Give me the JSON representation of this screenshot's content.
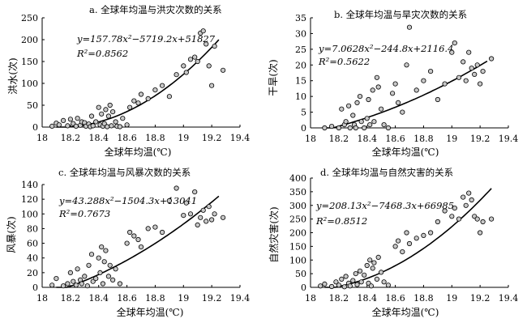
{
  "chart_data": [
    {
      "type": "scatter",
      "title": "a. 全球年均温与洪灾次数的关系",
      "xlabel": "全球年均温(℃)",
      "ylabel": "洪水(次)",
      "xlim": [
        18,
        19.4
      ],
      "ylim": [
        0,
        250
      ],
      "xticks": [
        "18",
        "18.2",
        "18.4",
        "18.6",
        "18.8",
        "19",
        "19.2",
        "19.4"
      ],
      "yticks": [
        "0",
        "50",
        "100",
        "150",
        "200",
        "250"
      ],
      "equation": "y=157.78x²−5719.2x+51827",
      "r2": "R²=0.8562",
      "fit": {
        "a": 157.78,
        "b": -5719.2,
        "c": 51827,
        "x_range": [
          18.1,
          19.25
        ]
      },
      "points": [
        [
          18.07,
          2
        ],
        [
          18.1,
          9
        ],
        [
          18.12,
          5
        ],
        [
          18.15,
          15
        ],
        [
          18.18,
          3
        ],
        [
          18.2,
          18
        ],
        [
          18.22,
          8
        ],
        [
          18.24,
          2
        ],
        [
          18.25,
          20
        ],
        [
          18.27,
          4
        ],
        [
          18.28,
          12
        ],
        [
          18.3,
          10
        ],
        [
          18.31,
          2
        ],
        [
          18.33,
          7
        ],
        [
          18.34,
          1
        ],
        [
          18.35,
          25
        ],
        [
          18.36,
          3
        ],
        [
          18.38,
          12
        ],
        [
          18.4,
          45
        ],
        [
          18.41,
          5
        ],
        [
          18.42,
          30
        ],
        [
          18.43,
          2
        ],
        [
          18.44,
          8
        ],
        [
          18.45,
          40
        ],
        [
          18.46,
          1
        ],
        [
          18.47,
          25
        ],
        [
          18.48,
          50
        ],
        [
          18.49,
          3
        ],
        [
          18.5,
          35
        ],
        [
          18.52,
          12
        ],
        [
          18.53,
          2
        ],
        [
          18.55,
          1
        ],
        [
          18.57,
          20
        ],
        [
          18.6,
          5
        ],
        [
          18.62,
          45
        ],
        [
          18.65,
          60
        ],
        [
          18.68,
          55
        ],
        [
          18.7,
          75
        ],
        [
          18.75,
          65
        ],
        [
          18.8,
          85
        ],
        [
          18.85,
          95
        ],
        [
          18.9,
          70
        ],
        [
          18.95,
          120
        ],
        [
          19,
          140
        ],
        [
          19.02,
          125
        ],
        [
          19.05,
          155
        ],
        [
          19.08,
          160
        ],
        [
          19.1,
          150
        ],
        [
          19.12,
          215
        ],
        [
          19.14,
          220
        ],
        [
          19.16,
          190
        ],
        [
          19.18,
          140
        ],
        [
          19.2,
          95
        ],
        [
          19.22,
          185
        ],
        [
          19.28,
          130
        ]
      ]
    },
    {
      "type": "scatter",
      "title": "b. 全球年均温与旱灾次数的关系",
      "xlabel": "全球年均温(℃)",
      "ylabel": "干旱(次)",
      "xlim": [
        18,
        19.4
      ],
      "ylim": [
        0,
        35
      ],
      "xticks": [
        "18",
        "18.2",
        "18.4",
        "18.6",
        "18.8",
        "19",
        "19.2",
        "19.4"
      ],
      "yticks": [
        "0",
        "5",
        "10",
        "15",
        "20",
        "25",
        "30",
        "35"
      ],
      "equation": "y=7.0628x²−244.8x+2116.4",
      "r2": "R²=0.5622",
      "fit": {
        "a": 7.0628,
        "b": -244.8,
        "c": 2116.4,
        "x_range": [
          18.1,
          19.25
        ]
      },
      "points": [
        [
          18.1,
          0
        ],
        [
          18.15,
          0.5
        ],
        [
          18.2,
          0
        ],
        [
          18.22,
          6
        ],
        [
          18.24,
          1
        ],
        [
          18.25,
          2
        ],
        [
          18.27,
          7
        ],
        [
          18.28,
          0
        ],
        [
          18.3,
          4
        ],
        [
          18.31,
          1
        ],
        [
          18.32,
          0
        ],
        [
          18.33,
          8
        ],
        [
          18.35,
          10
        ],
        [
          18.36,
          2
        ],
        [
          18.38,
          0
        ],
        [
          18.4,
          3
        ],
        [
          18.41,
          9
        ],
        [
          18.42,
          1
        ],
        [
          18.44,
          12
        ],
        [
          18.45,
          2
        ],
        [
          18.47,
          16
        ],
        [
          18.48,
          13
        ],
        [
          18.5,
          6
        ],
        [
          18.52,
          1
        ],
        [
          18.55,
          0
        ],
        [
          18.58,
          11
        ],
        [
          18.6,
          14
        ],
        [
          18.62,
          8
        ],
        [
          18.65,
          5
        ],
        [
          18.68,
          20
        ],
        [
          18.7,
          32
        ],
        [
          18.75,
          12
        ],
        [
          18.8,
          15
        ],
        [
          18.85,
          18
        ],
        [
          18.9,
          9
        ],
        [
          18.95,
          14
        ],
        [
          19,
          24
        ],
        [
          19.02,
          27
        ],
        [
          19.05,
          16
        ],
        [
          19.08,
          21
        ],
        [
          19.1,
          15
        ],
        [
          19.12,
          24
        ],
        [
          19.14,
          19
        ],
        [
          19.16,
          17
        ],
        [
          19.18,
          20
        ],
        [
          19.2,
          14
        ],
        [
          19.22,
          18
        ],
        [
          19.28,
          22
        ]
      ]
    },
    {
      "type": "scatter",
      "title": "c. 全球年均温与风暴次数的关系",
      "xlabel": "全球年均温(℃)",
      "ylabel": "风暴(次)",
      "xlim": [
        18,
        19.4
      ],
      "ylim": [
        0,
        140
      ],
      "xticks": [
        "18",
        "18.2",
        "18.4",
        "18.6",
        "18.8",
        "19",
        "19.2",
        "19.4"
      ],
      "yticks": [
        "0",
        "20",
        "40",
        "60",
        "80",
        "100",
        "120",
        "140"
      ],
      "equation": "y=43.288x²−1504.3x+13041",
      "r2": "R²=0.7673",
      "fit": {
        "a": 43.288,
        "b": -1504.3,
        "c": 13041,
        "x_range": [
          18.1,
          19.25
        ]
      },
      "points": [
        [
          18.07,
          3
        ],
        [
          18.1,
          12
        ],
        [
          18.15,
          2
        ],
        [
          18.18,
          5
        ],
        [
          18.2,
          20
        ],
        [
          18.22,
          8
        ],
        [
          18.24,
          3
        ],
        [
          18.25,
          25
        ],
        [
          18.27,
          10
        ],
        [
          18.28,
          5
        ],
        [
          18.3,
          15
        ],
        [
          18.32,
          2
        ],
        [
          18.33,
          30
        ],
        [
          18.35,
          45
        ],
        [
          18.36,
          8
        ],
        [
          18.38,
          12
        ],
        [
          18.4,
          40
        ],
        [
          18.41,
          20
        ],
        [
          18.42,
          55
        ],
        [
          18.43,
          5
        ],
        [
          18.44,
          35
        ],
        [
          18.45,
          50
        ],
        [
          18.47,
          15
        ],
        [
          18.48,
          30
        ],
        [
          18.5,
          10
        ],
        [
          18.52,
          25
        ],
        [
          18.55,
          5
        ],
        [
          18.6,
          60
        ],
        [
          18.62,
          75
        ],
        [
          18.65,
          70
        ],
        [
          18.68,
          65
        ],
        [
          18.7,
          55
        ],
        [
          18.75,
          80
        ],
        [
          18.8,
          82
        ],
        [
          18.85,
          75
        ],
        [
          18.9,
          118
        ],
        [
          18.95,
          135
        ],
        [
          19,
          98
        ],
        [
          19.02,
          115
        ],
        [
          19.05,
          100
        ],
        [
          19.08,
          130
        ],
        [
          19.1,
          85
        ],
        [
          19.12,
          95
        ],
        [
          19.14,
          105
        ],
        [
          19.16,
          90
        ],
        [
          19.18,
          110
        ],
        [
          19.2,
          92
        ],
        [
          19.22,
          100
        ],
        [
          19.28,
          95
        ]
      ]
    },
    {
      "type": "scatter",
      "title": "d. 全球年均温与自然灾害的关系",
      "xlabel": "全球年均温(℃)",
      "ylabel": "自然灾害(次)",
      "xlim": [
        18,
        19.4
      ],
      "ylim": [
        0,
        400
      ],
      "xticks": [
        "18",
        "18.2",
        "18.4",
        "18.6",
        "18.8",
        "19",
        "19.2",
        "19.4"
      ],
      "yticks": [
        "0",
        "50",
        "100",
        "150",
        "200",
        "250",
        "300",
        "350",
        "400"
      ],
      "equation": "y=208.13x²−7468.3x+66985",
      "r2": "R²=0.8512",
      "fit": {
        "a": 208.13,
        "b": -7468.3,
        "c": 66985,
        "x_range": [
          18.1,
          19.28
        ]
      },
      "points": [
        [
          18.07,
          5
        ],
        [
          18.1,
          12
        ],
        [
          18.15,
          3
        ],
        [
          18.18,
          20
        ],
        [
          18.2,
          8
        ],
        [
          18.22,
          30
        ],
        [
          18.24,
          2
        ],
        [
          18.25,
          40
        ],
        [
          18.27,
          15
        ],
        [
          18.28,
          5
        ],
        [
          18.3,
          25
        ],
        [
          18.32,
          50
        ],
        [
          18.33,
          10
        ],
        [
          18.35,
          60
        ],
        [
          18.36,
          20
        ],
        [
          18.38,
          45
        ],
        [
          18.4,
          80
        ],
        [
          18.41,
          15
        ],
        [
          18.42,
          100
        ],
        [
          18.43,
          5
        ],
        [
          18.44,
          70
        ],
        [
          18.45,
          90
        ],
        [
          18.47,
          30
        ],
        [
          18.48,
          110
        ],
        [
          18.5,
          55
        ],
        [
          18.52,
          20
        ],
        [
          18.55,
          8
        ],
        [
          18.6,
          150
        ],
        [
          18.62,
          170
        ],
        [
          18.65,
          130
        ],
        [
          18.68,
          200
        ],
        [
          18.7,
          160
        ],
        [
          18.75,
          180
        ],
        [
          18.8,
          190
        ],
        [
          18.85,
          200
        ],
        [
          18.9,
          240
        ],
        [
          18.95,
          280
        ],
        [
          19,
          260
        ],
        [
          19.02,
          290
        ],
        [
          19.05,
          250
        ],
        [
          19.08,
          330
        ],
        [
          19.1,
          300
        ],
        [
          19.12,
          345
        ],
        [
          19.14,
          320
        ],
        [
          19.16,
          260
        ],
        [
          19.18,
          250
        ],
        [
          19.2,
          200
        ],
        [
          19.22,
          240
        ],
        [
          19.28,
          250
        ]
      ]
    }
  ]
}
